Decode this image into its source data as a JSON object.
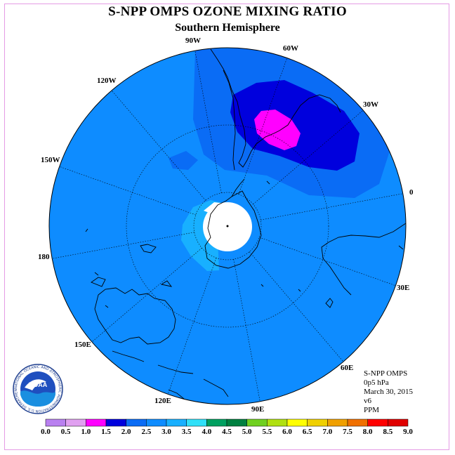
{
  "title": "S-NPP OMPS OZONE MIXING RATIO",
  "subtitle": "Southern Hemisphere",
  "longitude_labels": [
    "90W",
    "60W",
    "30W",
    "0",
    "30E",
    "60E",
    "90E",
    "120E",
    "150E",
    "180",
    "150W",
    "120W"
  ],
  "info": {
    "instrument": "S-NPP OMPS",
    "level": "0p5 hPa",
    "date": "March 30, 2015",
    "version": "v6",
    "units": "PPM"
  },
  "logo": {
    "text": "NOAA",
    "ring_text": "NATIONAL OCEANIC AND ATMOSPHERIC ADMINISTRATION U.S. DEPARTMENT OF COMMERCE"
  },
  "colorbar": {
    "labels": [
      "0.0",
      "0.5",
      "1.0",
      "1.5",
      "2.0",
      "2.5",
      "3.0",
      "3.5",
      "4.0",
      "4.5",
      "5.0",
      "5.5",
      "6.0",
      "6.5",
      "7.0",
      "7.5",
      "8.0",
      "8.5",
      "9.0"
    ],
    "colors": [
      "#b980f0",
      "#e0a0f0",
      "#ff00ff",
      "#0000dd",
      "#0a6cf5",
      "#0e8cff",
      "#18b0ff",
      "#30e0f8",
      "#00a060",
      "#008040",
      "#70d020",
      "#b0e010",
      "#ffff00",
      "#f0d000",
      "#f0a000",
      "#f07000",
      "#ff0000",
      "#e00000"
    ]
  },
  "field_colors": {
    "background_level": "#0e8cff",
    "level_2_0": "#0a6cf5",
    "level_1_5": "#0000dd",
    "level_1_0": "#ff00ff",
    "level_3_0": "#18b0ff",
    "missing": "#ffffff"
  }
}
